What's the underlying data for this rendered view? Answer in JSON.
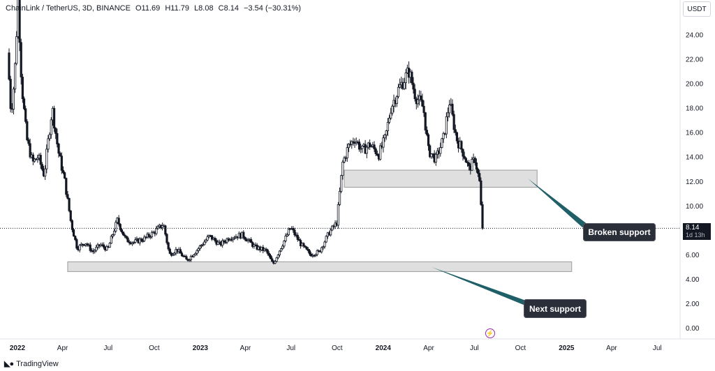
{
  "legend": {
    "symbol": "ChainLink / TetherUS, 3D, BINANCE",
    "open": "O11.69",
    "high": "H11.79",
    "low": "L8.08",
    "close": "C8.14",
    "change": "−3.54 (−30.31%)"
  },
  "currency_label": "USDT",
  "last_price": {
    "value": "8.14",
    "countdown": "1d 13h"
  },
  "callouts": {
    "broken": "Broken support",
    "next": "Next support"
  },
  "watermark": "TradingView",
  "icons": {
    "logo": "tradingview-logo-icon",
    "event": "lightning-icon"
  },
  "colors": {
    "candle_up": "#ffffff",
    "candle_down": "#131722",
    "zone": "#d9d9d9",
    "arrow": "#1f5f68",
    "callout_bg": "#2a2e39"
  },
  "chart_data": {
    "type": "candlestick",
    "x_tick_labels": [
      "2022",
      "Apr",
      "Jul",
      "Oct",
      "2023",
      "Apr",
      "Jul",
      "Oct",
      "2024",
      "Apr",
      "Jul",
      "Oct",
      "2025",
      "Apr",
      "Jul"
    ],
    "y_ticks": [
      0,
      2,
      4,
      6,
      8,
      10,
      12,
      14,
      16,
      18,
      20,
      22,
      24
    ],
    "y_tick_labels": [
      "0.00",
      "2.00",
      "4.00",
      "6.00",
      "8.00",
      "10.00",
      "12.00",
      "14.00",
      "16.00",
      "18.00",
      "20.00",
      "22.00",
      "24.00"
    ],
    "ylim": [
      -0.5,
      26.5
    ],
    "xlim": [
      "2022-01-01",
      "2025-08-31"
    ],
    "price_path": [
      [
        "2022-01-01",
        22.5
      ],
      [
        "2022-01-08",
        17.5
      ],
      [
        "2022-01-15",
        20.5
      ],
      [
        "2022-01-22",
        27.0
      ],
      [
        "2022-01-29",
        20.0
      ],
      [
        "2022-02-08",
        15.5
      ],
      [
        "2022-02-20",
        13.5
      ],
      [
        "2022-03-03",
        14.0
      ],
      [
        "2022-03-15",
        12.5
      ],
      [
        "2022-03-31",
        18.0
      ],
      [
        "2022-04-12",
        14.5
      ],
      [
        "2022-04-25",
        12.0
      ],
      [
        "2022-05-08",
        8.5
      ],
      [
        "2022-05-20",
        6.5
      ],
      [
        "2022-06-05",
        7.0
      ],
      [
        "2022-06-20",
        6.2
      ],
      [
        "2022-07-05",
        6.8
      ],
      [
        "2022-07-20",
        6.4
      ],
      [
        "2022-08-08",
        8.8
      ],
      [
        "2022-08-25",
        7.2
      ],
      [
        "2022-09-10",
        7.0
      ],
      [
        "2022-10-01",
        7.3
      ],
      [
        "2022-10-20",
        7.8
      ],
      [
        "2022-11-08",
        8.5
      ],
      [
        "2022-11-20",
        6.0
      ],
      [
        "2022-12-05",
        6.4
      ],
      [
        "2022-12-25",
        5.5
      ],
      [
        "2023-01-15",
        6.4
      ],
      [
        "2023-02-08",
        7.5
      ],
      [
        "2023-03-01",
        6.8
      ],
      [
        "2023-03-20",
        7.4
      ],
      [
        "2023-04-15",
        7.6
      ],
      [
        "2023-05-10",
        6.6
      ],
      [
        "2023-06-01",
        6.3
      ],
      [
        "2023-06-15",
        5.2
      ],
      [
        "2023-07-01",
        6.6
      ],
      [
        "2023-07-20",
        8.2
      ],
      [
        "2023-08-10",
        6.8
      ],
      [
        "2023-08-28",
        6.0
      ],
      [
        "2023-09-15",
        6.2
      ],
      [
        "2023-10-05",
        7.8
      ],
      [
        "2023-10-20",
        8.6
      ],
      [
        "2023-11-01",
        13.5
      ],
      [
        "2023-11-12",
        14.8
      ],
      [
        "2023-11-25",
        15.5
      ],
      [
        "2023-12-10",
        14.5
      ],
      [
        "2023-12-25",
        15.0
      ],
      [
        "2024-01-12",
        14.2
      ],
      [
        "2024-01-25",
        15.5
      ],
      [
        "2024-02-05",
        18.0
      ],
      [
        "2024-02-20",
        19.5
      ],
      [
        "2024-03-05",
        20.5
      ],
      [
        "2024-03-12",
        21.0
      ],
      [
        "2024-03-25",
        19.0
      ],
      [
        "2024-04-10",
        18.0
      ],
      [
        "2024-04-20",
        14.5
      ],
      [
        "2024-05-05",
        13.8
      ],
      [
        "2024-05-20",
        15.5
      ],
      [
        "2024-06-01",
        18.5
      ],
      [
        "2024-06-15",
        15.5
      ],
      [
        "2024-06-30",
        14.2
      ],
      [
        "2024-07-10",
        13.0
      ],
      [
        "2024-07-22",
        13.8
      ],
      [
        "2024-08-01",
        11.7
      ],
      [
        "2024-08-05",
        8.14
      ]
    ],
    "zones": [
      {
        "name": "Broken support",
        "x0": "2023-11-01",
        "x1": "2024-11-20",
        "y0": 11.5,
        "y1": 12.9
      },
      {
        "name": "Next support",
        "x0": "2022-04-28",
        "x1": "2025-01-28",
        "y0": 4.6,
        "y1": 5.4
      }
    ],
    "last_close": 8.14
  }
}
